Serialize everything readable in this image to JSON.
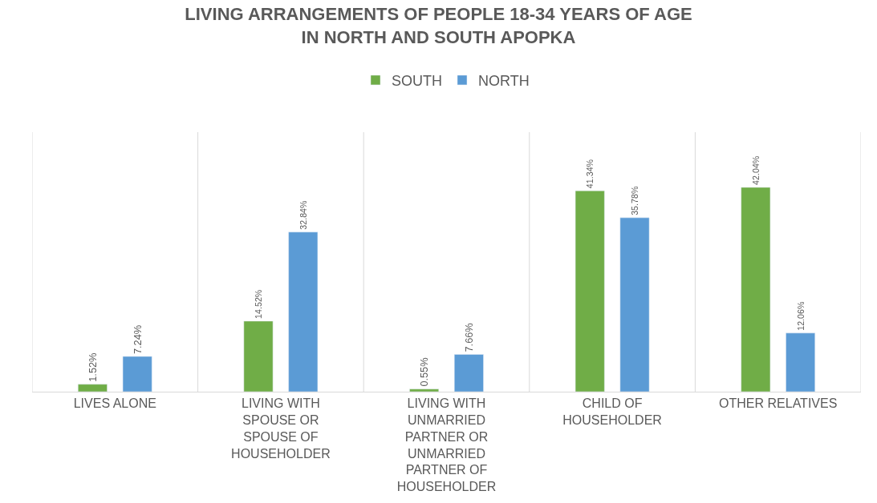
{
  "chart_data": {
    "type": "bar",
    "title": "LIVING ARRANGEMENTS OF PEOPLE 18-34 YEARS OF AGE IN NORTH AND SOUTH APOPKA",
    "categories": [
      "LIVES ALONE",
      "LIVING WITH SPOUSE OR SPOUSE OF HOUSEHOLDER",
      "LIVING WITH UNMARRIED PARTNER OR UNMARRIED PARTNER OF HOUSEHOLDER",
      "CHILD OF HOUSEHOLDER",
      "OTHER RELATIVES"
    ],
    "series": [
      {
        "name": "SOUTH",
        "color": "#70ad47",
        "values": [
          1.52,
          14.52,
          0.55,
          41.34,
          42.04
        ],
        "value_labels": [
          "1.52%",
          "14.52%",
          "0.55%",
          "41.34%",
          "42.04%"
        ]
      },
      {
        "name": "NORTH",
        "color": "#5b9bd5",
        "values": [
          7.24,
          32.84,
          7.66,
          35.78,
          12.06
        ],
        "value_labels": [
          "7.24%",
          "32.84%",
          "7.66%",
          "35.78%",
          "12.06%"
        ]
      }
    ],
    "grid": "x",
    "legend": "top"
  }
}
